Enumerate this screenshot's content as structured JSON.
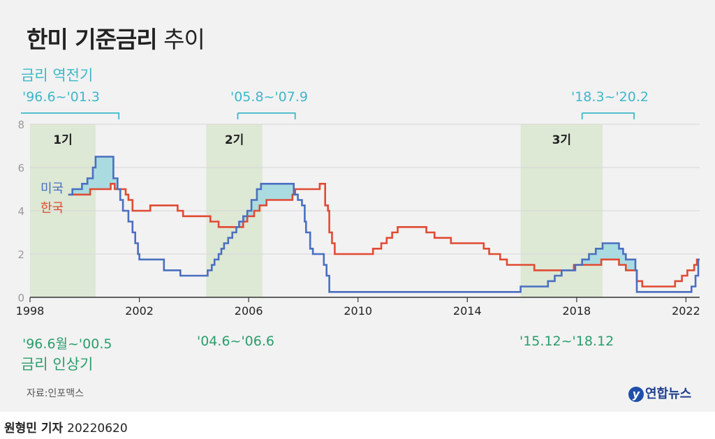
{
  "header": {
    "title_bold": "한미 기준금리",
    "title_light": "추이"
  },
  "annotations": {
    "inversion_heading": "금리 역전기",
    "inversion_periods": [
      "'96.6~'01.3",
      "'05.8~'07.9",
      "'18.3~'20.2"
    ],
    "hike_heading": "금리 인상기",
    "hike_periods": [
      "'96.6월~'00.5",
      "'04.6~'06.6",
      "'15.12~'18.12"
    ],
    "shade_labels": [
      "1기",
      "2기",
      "3기"
    ]
  },
  "footer": {
    "source": "자료:인포맥스",
    "logo_text": "연합뉴스",
    "logo_mark": "y",
    "reporter": "원형민 기자",
    "date": "20220620"
  },
  "colors": {
    "us": "#4a6fc0",
    "korea": "#e04a33",
    "gap_fill": "#a9dbe0",
    "hike_band": "#dde8d5",
    "teal": "#3db8c9",
    "green": "#2a9d6c"
  },
  "chart_data": {
    "type": "line",
    "title": "한미 기준금리 추이",
    "xlabel": "",
    "ylabel": "",
    "xlim": [
      1998,
      2022.5
    ],
    "ylim": [
      0,
      8
    ],
    "x_ticks": [
      1998,
      2002,
      2006,
      2010,
      2014,
      2018,
      2022
    ],
    "y_ticks": [
      0,
      2,
      4,
      6,
      8
    ],
    "grid": "horizontal",
    "legend": "inline-left",
    "shaded_periods": [
      {
        "label": "1기",
        "start": 1998,
        "end": 2000.4
      },
      {
        "label": "2기",
        "start": 2004.45,
        "end": 2006.5
      },
      {
        "label": "3기",
        "start": 2015.95,
        "end": 2018.95
      }
    ],
    "inversion_periods": [
      {
        "label": "'96.6~'01.3",
        "start": 1998,
        "end": 2001.25
      },
      {
        "label": "'05.8~'07.9",
        "start": 2005.6,
        "end": 2007.7
      },
      {
        "label": "'18.3~'20.2",
        "start": 2018.2,
        "end": 2020.1
      }
    ],
    "series": [
      {
        "name": "미국",
        "points": [
          [
            1999.4,
            4.75
          ],
          [
            1999.55,
            5.0
          ],
          [
            1999.9,
            5.25
          ],
          [
            2000.1,
            5.5
          ],
          [
            2000.3,
            6.0
          ],
          [
            2000.4,
            6.5
          ],
          [
            2001.05,
            5.5
          ],
          [
            2001.2,
            5.0
          ],
          [
            2001.3,
            4.5
          ],
          [
            2001.4,
            4.0
          ],
          [
            2001.6,
            3.5
          ],
          [
            2001.75,
            3.0
          ],
          [
            2001.85,
            2.5
          ],
          [
            2001.95,
            2.0
          ],
          [
            2002.0,
            1.75
          ],
          [
            2002.9,
            1.25
          ],
          [
            2003.5,
            1.0
          ],
          [
            2004.5,
            1.25
          ],
          [
            2004.65,
            1.5
          ],
          [
            2004.75,
            1.75
          ],
          [
            2004.9,
            2.0
          ],
          [
            2005.0,
            2.25
          ],
          [
            2005.1,
            2.5
          ],
          [
            2005.25,
            2.75
          ],
          [
            2005.4,
            3.0
          ],
          [
            2005.55,
            3.25
          ],
          [
            2005.65,
            3.5
          ],
          [
            2005.8,
            3.75
          ],
          [
            2005.95,
            4.0
          ],
          [
            2006.1,
            4.5
          ],
          [
            2006.3,
            5.0
          ],
          [
            2006.45,
            5.25
          ],
          [
            2007.65,
            4.75
          ],
          [
            2007.8,
            4.5
          ],
          [
            2007.95,
            4.25
          ],
          [
            2008.05,
            3.5
          ],
          [
            2008.1,
            3.0
          ],
          [
            2008.25,
            2.25
          ],
          [
            2008.35,
            2.0
          ],
          [
            2008.75,
            1.5
          ],
          [
            2008.85,
            1.0
          ],
          [
            2008.95,
            0.25
          ],
          [
            2015.95,
            0.5
          ],
          [
            2016.95,
            0.75
          ],
          [
            2017.2,
            1.0
          ],
          [
            2017.45,
            1.25
          ],
          [
            2017.95,
            1.5
          ],
          [
            2018.2,
            1.75
          ],
          [
            2018.45,
            2.0
          ],
          [
            2018.7,
            2.25
          ],
          [
            2018.95,
            2.5
          ],
          [
            2019.55,
            2.25
          ],
          [
            2019.7,
            2.0
          ],
          [
            2019.8,
            1.75
          ],
          [
            2020.15,
            1.25
          ],
          [
            2020.2,
            0.25
          ],
          [
            2022.2,
            0.5
          ],
          [
            2022.35,
            1.0
          ],
          [
            2022.45,
            1.75
          ]
        ]
      },
      {
        "name": "한국",
        "points": [
          [
            1999.4,
            4.75
          ],
          [
            2000.2,
            5.0
          ],
          [
            2000.95,
            5.25
          ],
          [
            2001.1,
            5.0
          ],
          [
            2001.5,
            4.75
          ],
          [
            2001.6,
            4.5
          ],
          [
            2001.75,
            4.0
          ],
          [
            2002.4,
            4.25
          ],
          [
            2003.4,
            4.0
          ],
          [
            2003.6,
            3.75
          ],
          [
            2004.6,
            3.5
          ],
          [
            2004.9,
            3.25
          ],
          [
            2005.8,
            3.5
          ],
          [
            2005.95,
            3.75
          ],
          [
            2006.2,
            4.0
          ],
          [
            2006.4,
            4.25
          ],
          [
            2006.65,
            4.5
          ],
          [
            2007.6,
            4.75
          ],
          [
            2007.7,
            5.0
          ],
          [
            2008.6,
            5.25
          ],
          [
            2008.8,
            4.25
          ],
          [
            2008.9,
            4.0
          ],
          [
            2008.95,
            3.0
          ],
          [
            2009.05,
            2.5
          ],
          [
            2009.15,
            2.0
          ],
          [
            2010.55,
            2.25
          ],
          [
            2010.85,
            2.5
          ],
          [
            2011.05,
            2.75
          ],
          [
            2011.25,
            3.0
          ],
          [
            2011.45,
            3.25
          ],
          [
            2012.5,
            3.0
          ],
          [
            2012.8,
            2.75
          ],
          [
            2013.4,
            2.5
          ],
          [
            2014.6,
            2.25
          ],
          [
            2014.8,
            2.0
          ],
          [
            2015.2,
            1.75
          ],
          [
            2015.45,
            1.5
          ],
          [
            2016.45,
            1.25
          ],
          [
            2017.9,
            1.5
          ],
          [
            2018.9,
            1.75
          ],
          [
            2019.55,
            1.5
          ],
          [
            2019.8,
            1.25
          ],
          [
            2020.2,
            0.75
          ],
          [
            2020.4,
            0.5
          ],
          [
            2021.6,
            0.75
          ],
          [
            2021.85,
            1.0
          ],
          [
            2022.05,
            1.25
          ],
          [
            2022.3,
            1.5
          ],
          [
            2022.4,
            1.75
          ]
        ]
      }
    ]
  }
}
